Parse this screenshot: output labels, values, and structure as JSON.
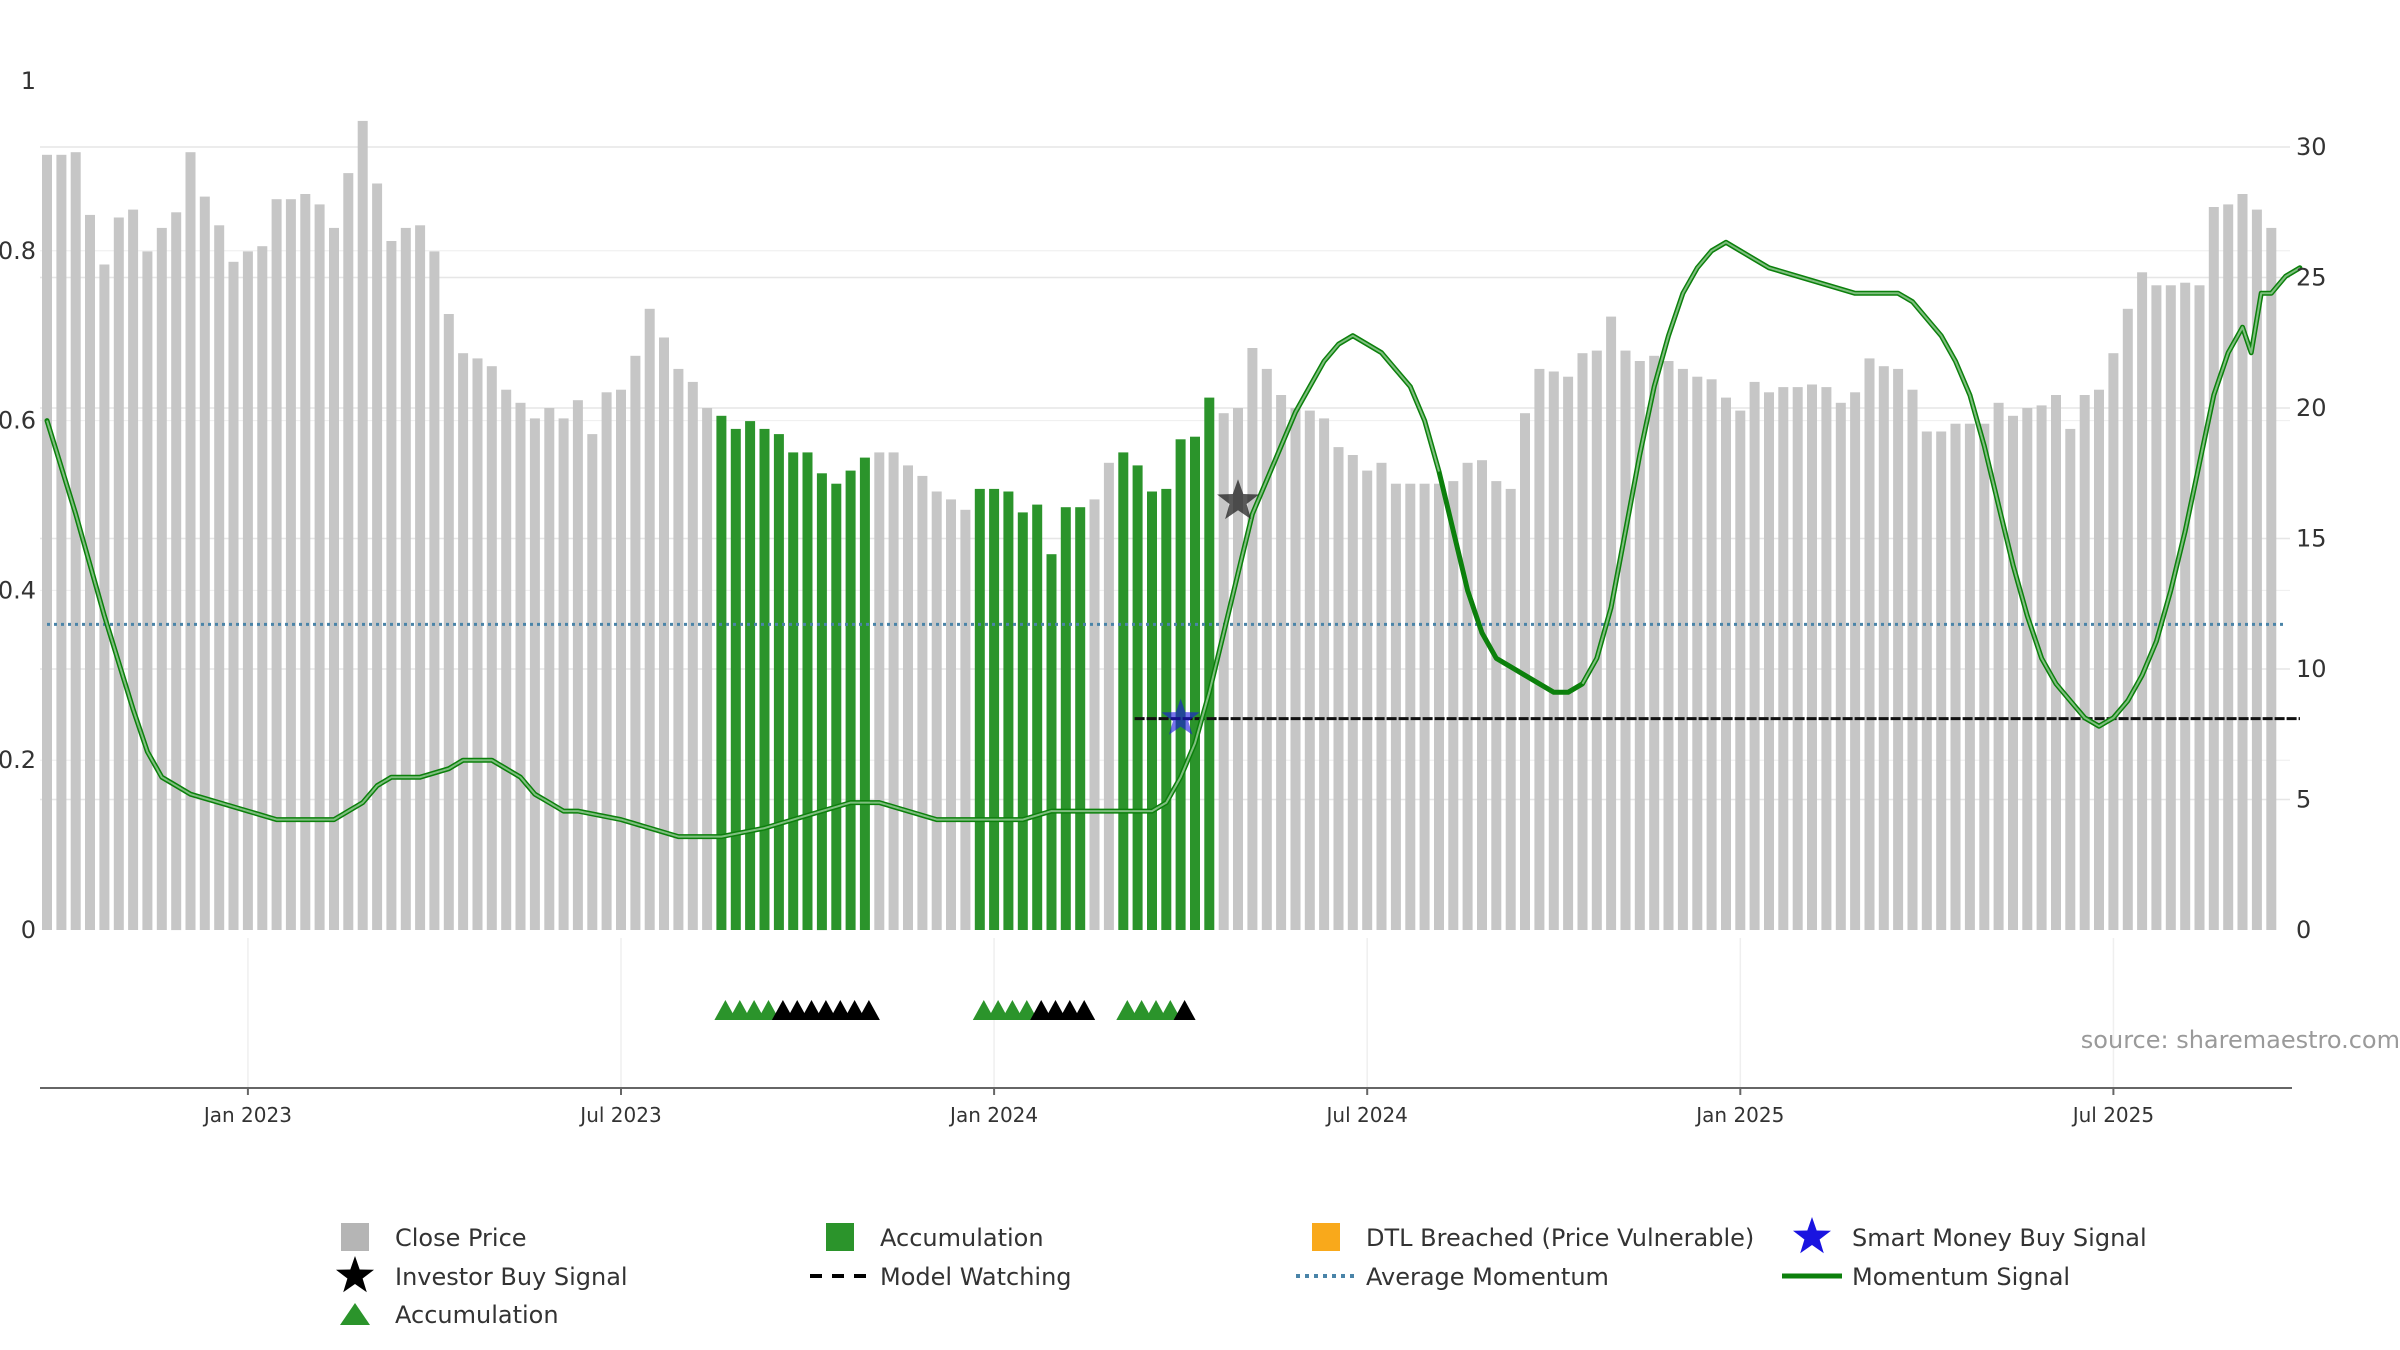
{
  "chart_data": {
    "type": "bar",
    "title": "",
    "source": "source: sharemaestro.com",
    "left_axis": {
      "ylim": [
        0,
        1
      ],
      "ticks": [
        "0",
        "0.2",
        "0.4",
        "0.6",
        "0.8",
        "1"
      ]
    },
    "right_axis": {
      "ylim": [
        0,
        32.5
      ],
      "ticks": [
        "0",
        "5",
        "10",
        "15",
        "20",
        "25",
        "30"
      ]
    },
    "x_axis": {
      "labels": [
        {
          "week": 14,
          "label": "Jan 2023"
        },
        {
          "week": 40,
          "label": "Jul 2023"
        },
        {
          "week": 66,
          "label": "Jan 2024"
        },
        {
          "week": 92,
          "label": "Jul 2024"
        },
        {
          "week": 118,
          "label": "Jan 2025"
        },
        {
          "week": 144,
          "label": "Jul 2025"
        }
      ]
    },
    "close_price": [
      29.7,
      29.7,
      29.8,
      27.4,
      25.5,
      27.3,
      27.6,
      26.0,
      26.9,
      27.5,
      29.8,
      28.1,
      27.0,
      25.6,
      26.0,
      26.2,
      28.0,
      28.0,
      28.2,
      27.8,
      26.9,
      29.0,
      31.0,
      28.6,
      26.4,
      26.9,
      27.0,
      26.0,
      23.6,
      22.1,
      21.9,
      21.6,
      20.7,
      20.2,
      19.6,
      20.0,
      19.6,
      20.3,
      19.0,
      20.6,
      20.7,
      22.0,
      23.8,
      22.7,
      21.5,
      21.0,
      20.0,
      19.7,
      19.2,
      19.5,
      19.2,
      19.0,
      18.3,
      18.3,
      17.5,
      17.1,
      17.6,
      18.1,
      18.3,
      18.3,
      17.8,
      17.4,
      16.8,
      16.5,
      16.1,
      16.9,
      16.9,
      16.8,
      16.0,
      16.3,
      14.4,
      16.2,
      16.2,
      16.5,
      17.9,
      18.3,
      17.8,
      16.8,
      16.9,
      18.8,
      18.9,
      20.4,
      19.8,
      20.0,
      22.3,
      21.5,
      20.5,
      20.0,
      19.9,
      19.6,
      18.5,
      18.2,
      17.6,
      17.9,
      17.1,
      17.1,
      17.1,
      17.1,
      17.2,
      17.9,
      18.0,
      17.2,
      16.9,
      19.8,
      21.5,
      21.4,
      21.2,
      22.1,
      22.2,
      23.5,
      22.2,
      21.8,
      22.0,
      21.8,
      21.5,
      21.2,
      21.1,
      20.4,
      19.9,
      21.0,
      20.6,
      20.8,
      20.8,
      20.9,
      20.8,
      20.2,
      20.6,
      21.9,
      21.6,
      21.5,
      20.7,
      19.1,
      19.1,
      19.4,
      19.4,
      19.4,
      20.2,
      19.7,
      20.0,
      20.1,
      20.5,
      19.2,
      20.5,
      20.7,
      22.1,
      23.8,
      25.2,
      24.7,
      24.7,
      24.8,
      24.7,
      27.7,
      27.8,
      28.2,
      27.6,
      26.9
    ],
    "accumulation_weeks": [
      47,
      48,
      49,
      50,
      51,
      52,
      53,
      54,
      55,
      56,
      57,
      65,
      66,
      67,
      68,
      69,
      70,
      71,
      72,
      75,
      76,
      77,
      78,
      79,
      80,
      81
    ],
    "momentum_signal": [
      [
        0,
        0.6
      ],
      [
        2,
        0.49
      ],
      [
        4,
        0.37
      ],
      [
        6,
        0.26
      ],
      [
        7,
        0.21
      ],
      [
        8,
        0.18
      ],
      [
        9,
        0.17
      ],
      [
        10,
        0.16
      ],
      [
        12,
        0.15
      ],
      [
        14,
        0.14
      ],
      [
        16,
        0.13
      ],
      [
        18,
        0.13
      ],
      [
        20,
        0.13
      ],
      [
        21,
        0.14
      ],
      [
        22,
        0.15
      ],
      [
        23,
        0.17
      ],
      [
        24,
        0.18
      ],
      [
        26,
        0.18
      ],
      [
        28,
        0.19
      ],
      [
        29,
        0.2
      ],
      [
        30,
        0.2
      ],
      [
        31,
        0.2
      ],
      [
        32,
        0.19
      ],
      [
        33,
        0.18
      ],
      [
        34,
        0.16
      ],
      [
        35,
        0.15
      ],
      [
        36,
        0.14
      ],
      [
        37,
        0.14
      ],
      [
        40,
        0.13
      ],
      [
        42,
        0.12
      ],
      [
        44,
        0.11
      ],
      [
        47,
        0.11
      ],
      [
        50,
        0.12
      ],
      [
        52,
        0.13
      ],
      [
        54,
        0.14
      ],
      [
        56,
        0.15
      ],
      [
        58,
        0.15
      ],
      [
        60,
        0.14
      ],
      [
        62,
        0.13
      ],
      [
        64,
        0.13
      ],
      [
        66,
        0.13
      ],
      [
        68,
        0.13
      ],
      [
        70,
        0.14
      ],
      [
        72,
        0.14
      ],
      [
        75,
        0.14
      ],
      [
        77,
        0.14
      ],
      [
        78,
        0.15
      ],
      [
        79,
        0.18
      ],
      [
        80,
        0.22
      ],
      [
        81,
        0.28
      ],
      [
        82,
        0.35
      ],
      [
        83,
        0.42
      ],
      [
        84,
        0.49
      ],
      [
        85,
        0.53
      ],
      [
        86,
        0.57
      ],
      [
        87,
        0.61
      ],
      [
        88,
        0.64
      ],
      [
        89,
        0.67
      ],
      [
        90,
        0.69
      ],
      [
        91,
        0.7
      ],
      [
        92,
        0.69
      ],
      [
        93,
        0.68
      ],
      [
        94,
        0.66
      ],
      [
        95,
        0.64
      ],
      [
        96,
        0.6
      ],
      [
        97,
        0.54
      ],
      [
        98,
        0.47
      ],
      [
        99,
        0.4
      ],
      [
        100,
        0.35
      ],
      [
        101,
        0.32
      ],
      [
        102,
        0.31
      ],
      [
        103,
        0.3
      ],
      [
        104,
        0.29
      ],
      [
        105,
        0.28
      ],
      [
        106,
        0.28
      ],
      [
        107,
        0.29
      ],
      [
        108,
        0.32
      ],
      [
        109,
        0.38
      ],
      [
        110,
        0.47
      ],
      [
        111,
        0.56
      ],
      [
        112,
        0.64
      ],
      [
        113,
        0.7
      ],
      [
        114,
        0.75
      ],
      [
        115,
        0.78
      ],
      [
        116,
        0.8
      ],
      [
        117,
        0.81
      ],
      [
        118,
        0.8
      ],
      [
        119,
        0.79
      ],
      [
        120,
        0.78
      ],
      [
        122,
        0.77
      ],
      [
        124,
        0.76
      ],
      [
        126,
        0.75
      ],
      [
        128,
        0.75
      ],
      [
        129,
        0.75
      ],
      [
        130,
        0.74
      ],
      [
        131,
        0.72
      ],
      [
        132,
        0.7
      ],
      [
        133,
        0.67
      ],
      [
        134,
        0.63
      ],
      [
        135,
        0.57
      ],
      [
        136,
        0.5
      ],
      [
        137,
        0.43
      ],
      [
        138,
        0.37
      ],
      [
        139,
        0.32
      ],
      [
        140,
        0.29
      ],
      [
        141,
        0.27
      ],
      [
        142,
        0.25
      ],
      [
        143,
        0.24
      ],
      [
        144,
        0.25
      ],
      [
        145,
        0.27
      ],
      [
        146,
        0.3
      ],
      [
        147,
        0.34
      ],
      [
        148,
        0.4
      ],
      [
        149,
        0.47
      ],
      [
        150,
        0.55
      ],
      [
        151,
        0.63
      ],
      [
        152,
        0.68
      ],
      [
        153,
        0.71
      ],
      [
        153.6,
        0.68
      ],
      [
        154.3,
        0.75
      ],
      [
        155,
        0.75
      ],
      [
        156,
        0.77
      ],
      [
        157,
        0.78
      ]
    ],
    "momentum_dim_ranges": [
      [
        0,
        97
      ],
      [
        107,
        157
      ]
    ],
    "average_momentum": 0.36,
    "model_watching": {
      "from_week": 76,
      "to_week": 157,
      "value": 0.249
    },
    "smart_money_buy_signal": {
      "week": 79,
      "value": 0.249
    },
    "investor_buy_signal": {
      "week": 83,
      "value": 0.505
    },
    "markers": {
      "green": [
        47,
        48,
        49,
        50,
        65,
        66,
        67,
        68,
        75,
        76,
        77,
        78
      ],
      "black": [
        51,
        52,
        53,
        54,
        55,
        56,
        57,
        69,
        70,
        71,
        72,
        79
      ]
    },
    "colors": {
      "close": "#c6c6c6",
      "accumulation": "#2b942b",
      "momentum": "#0c800c",
      "average": "#4a84a8",
      "grid": "#e6e6e6",
      "dtl": "#f9a91b",
      "smart_money": "#1a14e0",
      "investor": "#000000"
    },
    "legend": [
      {
        "label": "Close Price",
        "icon": "square-gray"
      },
      {
        "label": "Accumulation",
        "icon": "square-green"
      },
      {
        "label": "DTL Breached (Price Vulnerable)",
        "icon": "square-orange"
      },
      {
        "label": "Smart Money Buy Signal",
        "icon": "star-blue"
      },
      {
        "label": "Investor Buy Signal",
        "icon": "star-black"
      },
      {
        "label": "Model Watching",
        "icon": "dash-black"
      },
      {
        "label": "Average Momentum",
        "icon": "dot-blue"
      },
      {
        "label": "Momentum Signal",
        "icon": "line-green"
      },
      {
        "label": "Accumulation",
        "icon": "triangle-green"
      }
    ]
  }
}
